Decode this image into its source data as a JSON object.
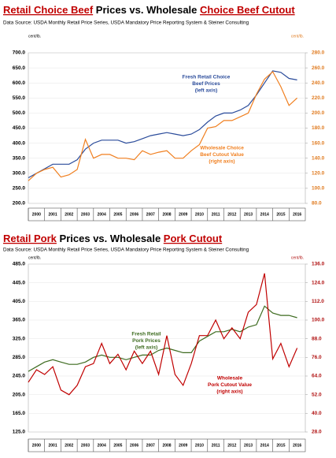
{
  "chart_data": [
    {
      "type": "line",
      "title": [
        "Retail Choice Beef",
        "Prices vs. Wholesale",
        "Choice Beef Cutout"
      ],
      "subtitle": "Data Source:  USDA Monthly Retail Price Series, USDA Mandatory Price Reporting System & Steiner Consulting",
      "y_unit": "cent/lb.",
      "y2_unit": "cent/lb.",
      "x": [
        2000,
        2000.5,
        2001,
        2001.5,
        2002,
        2002.5,
        2003,
        2003.5,
        2004,
        2004.5,
        2005,
        2005.5,
        2006,
        2006.5,
        2007,
        2007.5,
        2008,
        2008.5,
        2009,
        2009.5,
        2010,
        2010.5,
        2011,
        2011.5,
        2012,
        2012.5,
        2013,
        2013.5,
        2014,
        2014.5,
        2015,
        2015.5,
        2016,
        2016.5
      ],
      "xlim": [
        2000,
        2017
      ],
      "xticks": [
        2000,
        2001,
        2002,
        2003,
        2004,
        2005,
        2006,
        2007,
        2008,
        2009,
        2010,
        2011,
        2012,
        2013,
        2014,
        2015,
        2016
      ],
      "ylim": [
        200,
        700
      ],
      "yticks": [
        {
          "value": 200,
          "label": "200.0"
        },
        {
          "value": 250,
          "label": "250.0"
        },
        {
          "value": 300,
          "label": "300.0"
        },
        {
          "value": 350,
          "label": "350.0"
        },
        {
          "value": 400,
          "label": "400.0"
        },
        {
          "value": 450,
          "label": "450.0"
        },
        {
          "value": 500,
          "label": "500.0"
        },
        {
          "value": 550,
          "label": "550.0"
        },
        {
          "value": 600,
          "label": "600.0"
        },
        {
          "value": 650,
          "label": "650.0"
        },
        {
          "value": 700,
          "label": "700.0"
        }
      ],
      "y2lim": [
        80,
        280
      ],
      "y2ticks": [
        {
          "value": 80,
          "label": "80.0"
        },
        {
          "value": 100,
          "label": "100.0"
        },
        {
          "value": 120,
          "label": "120.0"
        },
        {
          "value": 140,
          "label": "140.0"
        },
        {
          "value": 160,
          "label": "160.0"
        },
        {
          "value": 180,
          "label": "180.0"
        },
        {
          "value": 200,
          "label": "200.0"
        },
        {
          "value": 220,
          "label": "220.0"
        },
        {
          "value": 240,
          "label": "240.0"
        },
        {
          "value": 260,
          "label": "260.0"
        },
        {
          "value": 280,
          "label": "280.0"
        }
      ],
      "y2_color": "#e07b20",
      "grid": true,
      "series": [
        {
          "name": [
            "Fresh Retail Choice",
            "Beef Prices",
            "(left axis)"
          ],
          "color": "#2b4c9b",
          "values": [
            285,
            300,
            315,
            330,
            330,
            330,
            345,
            380,
            400,
            410,
            410,
            410,
            400,
            405,
            415,
            425,
            430,
            435,
            430,
            425,
            430,
            445,
            470,
            490,
            500,
            500,
            510,
            525,
            560,
            600,
            640,
            635,
            615,
            610
          ]
        },
        {
          "name": [
            "Wholesale Choice",
            "Beef Cutout Value",
            "(right axis)"
          ],
          "color": "#f07f1f",
          "axis": "y2",
          "values": [
            110,
            120,
            125,
            128,
            115,
            118,
            125,
            165,
            140,
            145,
            145,
            140,
            140,
            138,
            150,
            145,
            148,
            150,
            140,
            140,
            150,
            158,
            180,
            182,
            190,
            190,
            195,
            200,
            225,
            245,
            255,
            235,
            210,
            220
          ]
        }
      ]
    },
    {
      "type": "line",
      "title": [
        "Retail Pork",
        "Prices vs. Wholesale",
        "Pork Cutout"
      ],
      "subtitle": "Data Source:  USDA Monthly Retail Price Series, USDA Mandatory Price Reporting System & Steiner Consulting",
      "y_unit": "cent/lb.",
      "y2_unit": "cent/lb.",
      "x": [
        2000,
        2000.5,
        2001,
        2001.5,
        2002,
        2002.5,
        2003,
        2003.5,
        2004,
        2004.5,
        2005,
        2005.5,
        2006,
        2006.5,
        2007,
        2007.5,
        2008,
        2008.5,
        2009,
        2009.5,
        2010,
        2010.5,
        2011,
        2011.5,
        2012,
        2012.5,
        2013,
        2013.5,
        2014,
        2014.5,
        2015,
        2015.5,
        2016,
        2016.5
      ],
      "xlim": [
        2000,
        2017
      ],
      "xticks": [
        2000,
        2001,
        2002,
        2003,
        2004,
        2005,
        2006,
        2007,
        2008,
        2009,
        2010,
        2011,
        2012,
        2013,
        2014,
        2015,
        2016
      ],
      "ylim": [
        125,
        485
      ],
      "yticks": [
        {
          "value": 125,
          "label": "125.0"
        },
        {
          "value": 165,
          "label": "165.0"
        },
        {
          "value": 205,
          "label": "205.0"
        },
        {
          "value": 245,
          "label": "245.0"
        },
        {
          "value": 285,
          "label": "285.0"
        },
        {
          "value": 325,
          "label": "325.0"
        },
        {
          "value": 365,
          "label": "365.0"
        },
        {
          "value": 405,
          "label": "405.0"
        },
        {
          "value": 445,
          "label": "445.0"
        },
        {
          "value": 485,
          "label": "485.0"
        }
      ],
      "y2lim": [
        28,
        136
      ],
      "y2ticks": [
        {
          "value": 28,
          "label": "28.0"
        },
        {
          "value": 40,
          "label": "40.0"
        },
        {
          "value": 52,
          "label": "52.0"
        },
        {
          "value": 64,
          "label": "64.0"
        },
        {
          "value": 76,
          "label": "76.0"
        },
        {
          "value": 88,
          "label": "88.0"
        },
        {
          "value": 100,
          "label": "100.0"
        },
        {
          "value": 112,
          "label": "112.0"
        },
        {
          "value": 124,
          "label": "124.0"
        },
        {
          "value": 136,
          "label": "136.0"
        }
      ],
      "y2_color": "#b01010",
      "grid": true,
      "series": [
        {
          "name": [
            "Fresh Retail",
            "Pork Prices",
            "(left axis)"
          ],
          "color": "#3d6b1f",
          "values": [
            255,
            265,
            275,
            280,
            275,
            270,
            270,
            275,
            285,
            290,
            285,
            285,
            280,
            285,
            290,
            290,
            300,
            305,
            300,
            295,
            295,
            320,
            330,
            340,
            340,
            345,
            340,
            350,
            355,
            395,
            380,
            375,
            375,
            370
          ]
        },
        {
          "name": [
            "Wholesale",
            "Pork Cutout Value",
            "(right axis)"
          ],
          "color": "#c00000",
          "axis": "y2",
          "values": [
            60,
            68,
            65,
            70,
            55,
            52,
            58,
            70,
            72,
            85,
            72,
            78,
            68,
            80,
            72,
            80,
            65,
            90,
            65,
            58,
            72,
            90,
            90,
            100,
            88,
            95,
            88,
            105,
            110,
            130,
            75,
            85,
            70,
            82
          ]
        }
      ]
    }
  ]
}
